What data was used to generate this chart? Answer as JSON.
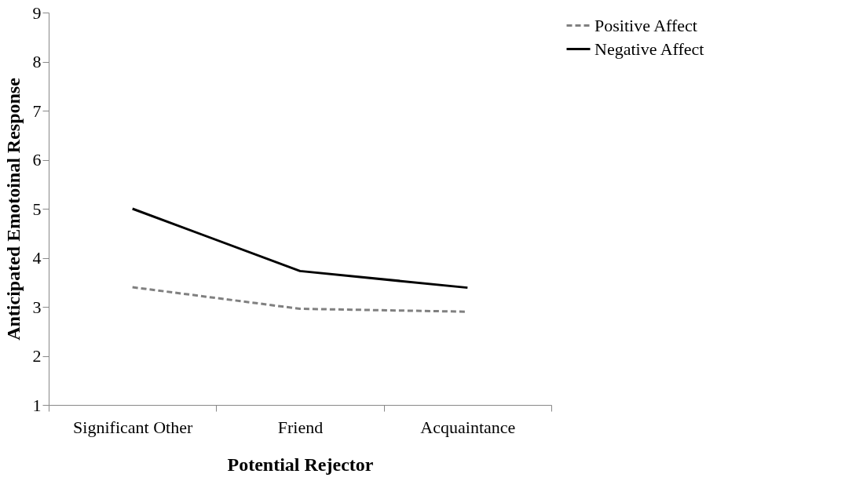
{
  "chart_data": {
    "type": "line",
    "xlabel": "Potential Rejector",
    "ylabel": "Anticipated Emotoinal Response",
    "categories": [
      "Significant Other",
      "Friend",
      "Acquaintance"
    ],
    "series": [
      {
        "name": "Positive Affect",
        "color": "#808080",
        "line_style": "dashed",
        "values": [
          3.4,
          2.96,
          2.9
        ]
      },
      {
        "name": "Negative Affect",
        "color": "#000000",
        "line_style": "solid",
        "values": [
          5.0,
          3.73,
          3.39
        ]
      }
    ],
    "ylim": [
      1,
      9
    ],
    "yticks": [
      1,
      2,
      3,
      4,
      5,
      6,
      7,
      8,
      9
    ],
    "grid": false,
    "legend": "right",
    "marker": "none"
  }
}
